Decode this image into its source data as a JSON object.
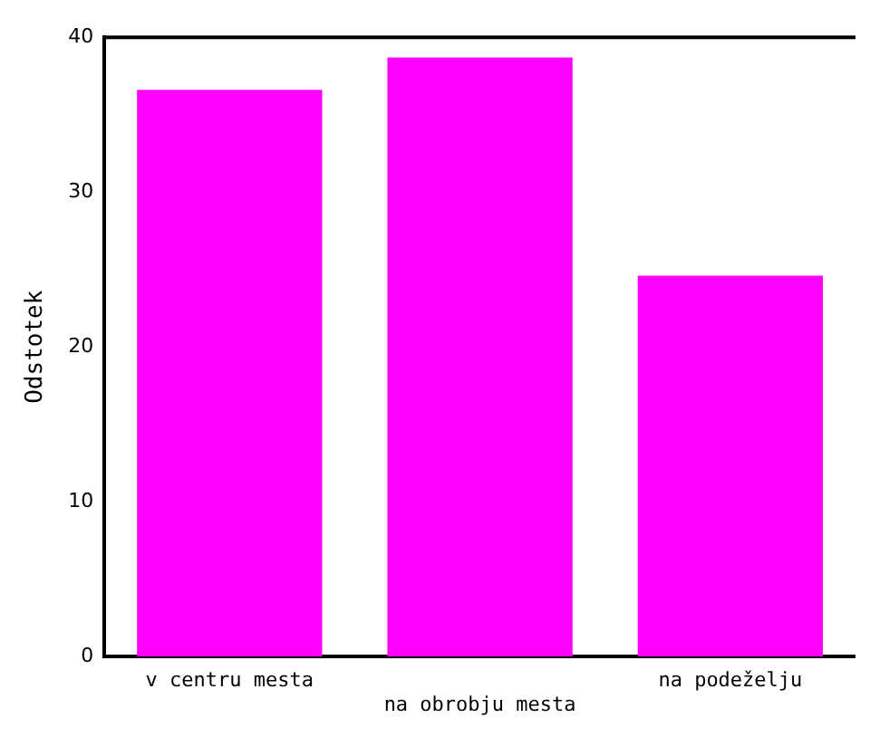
{
  "chart_data": {
    "type": "bar",
    "ylabel": "Odstotek",
    "categories": [
      "v centru mesta",
      "na obrobju mesta",
      "na podeželju"
    ],
    "values": [
      36.6,
      38.7,
      24.6
    ],
    "color": "#ff00ff",
    "ylim": [
      0,
      40
    ],
    "yticks": [
      0,
      10,
      20,
      30,
      40
    ],
    "grid": false,
    "legend": false
  }
}
